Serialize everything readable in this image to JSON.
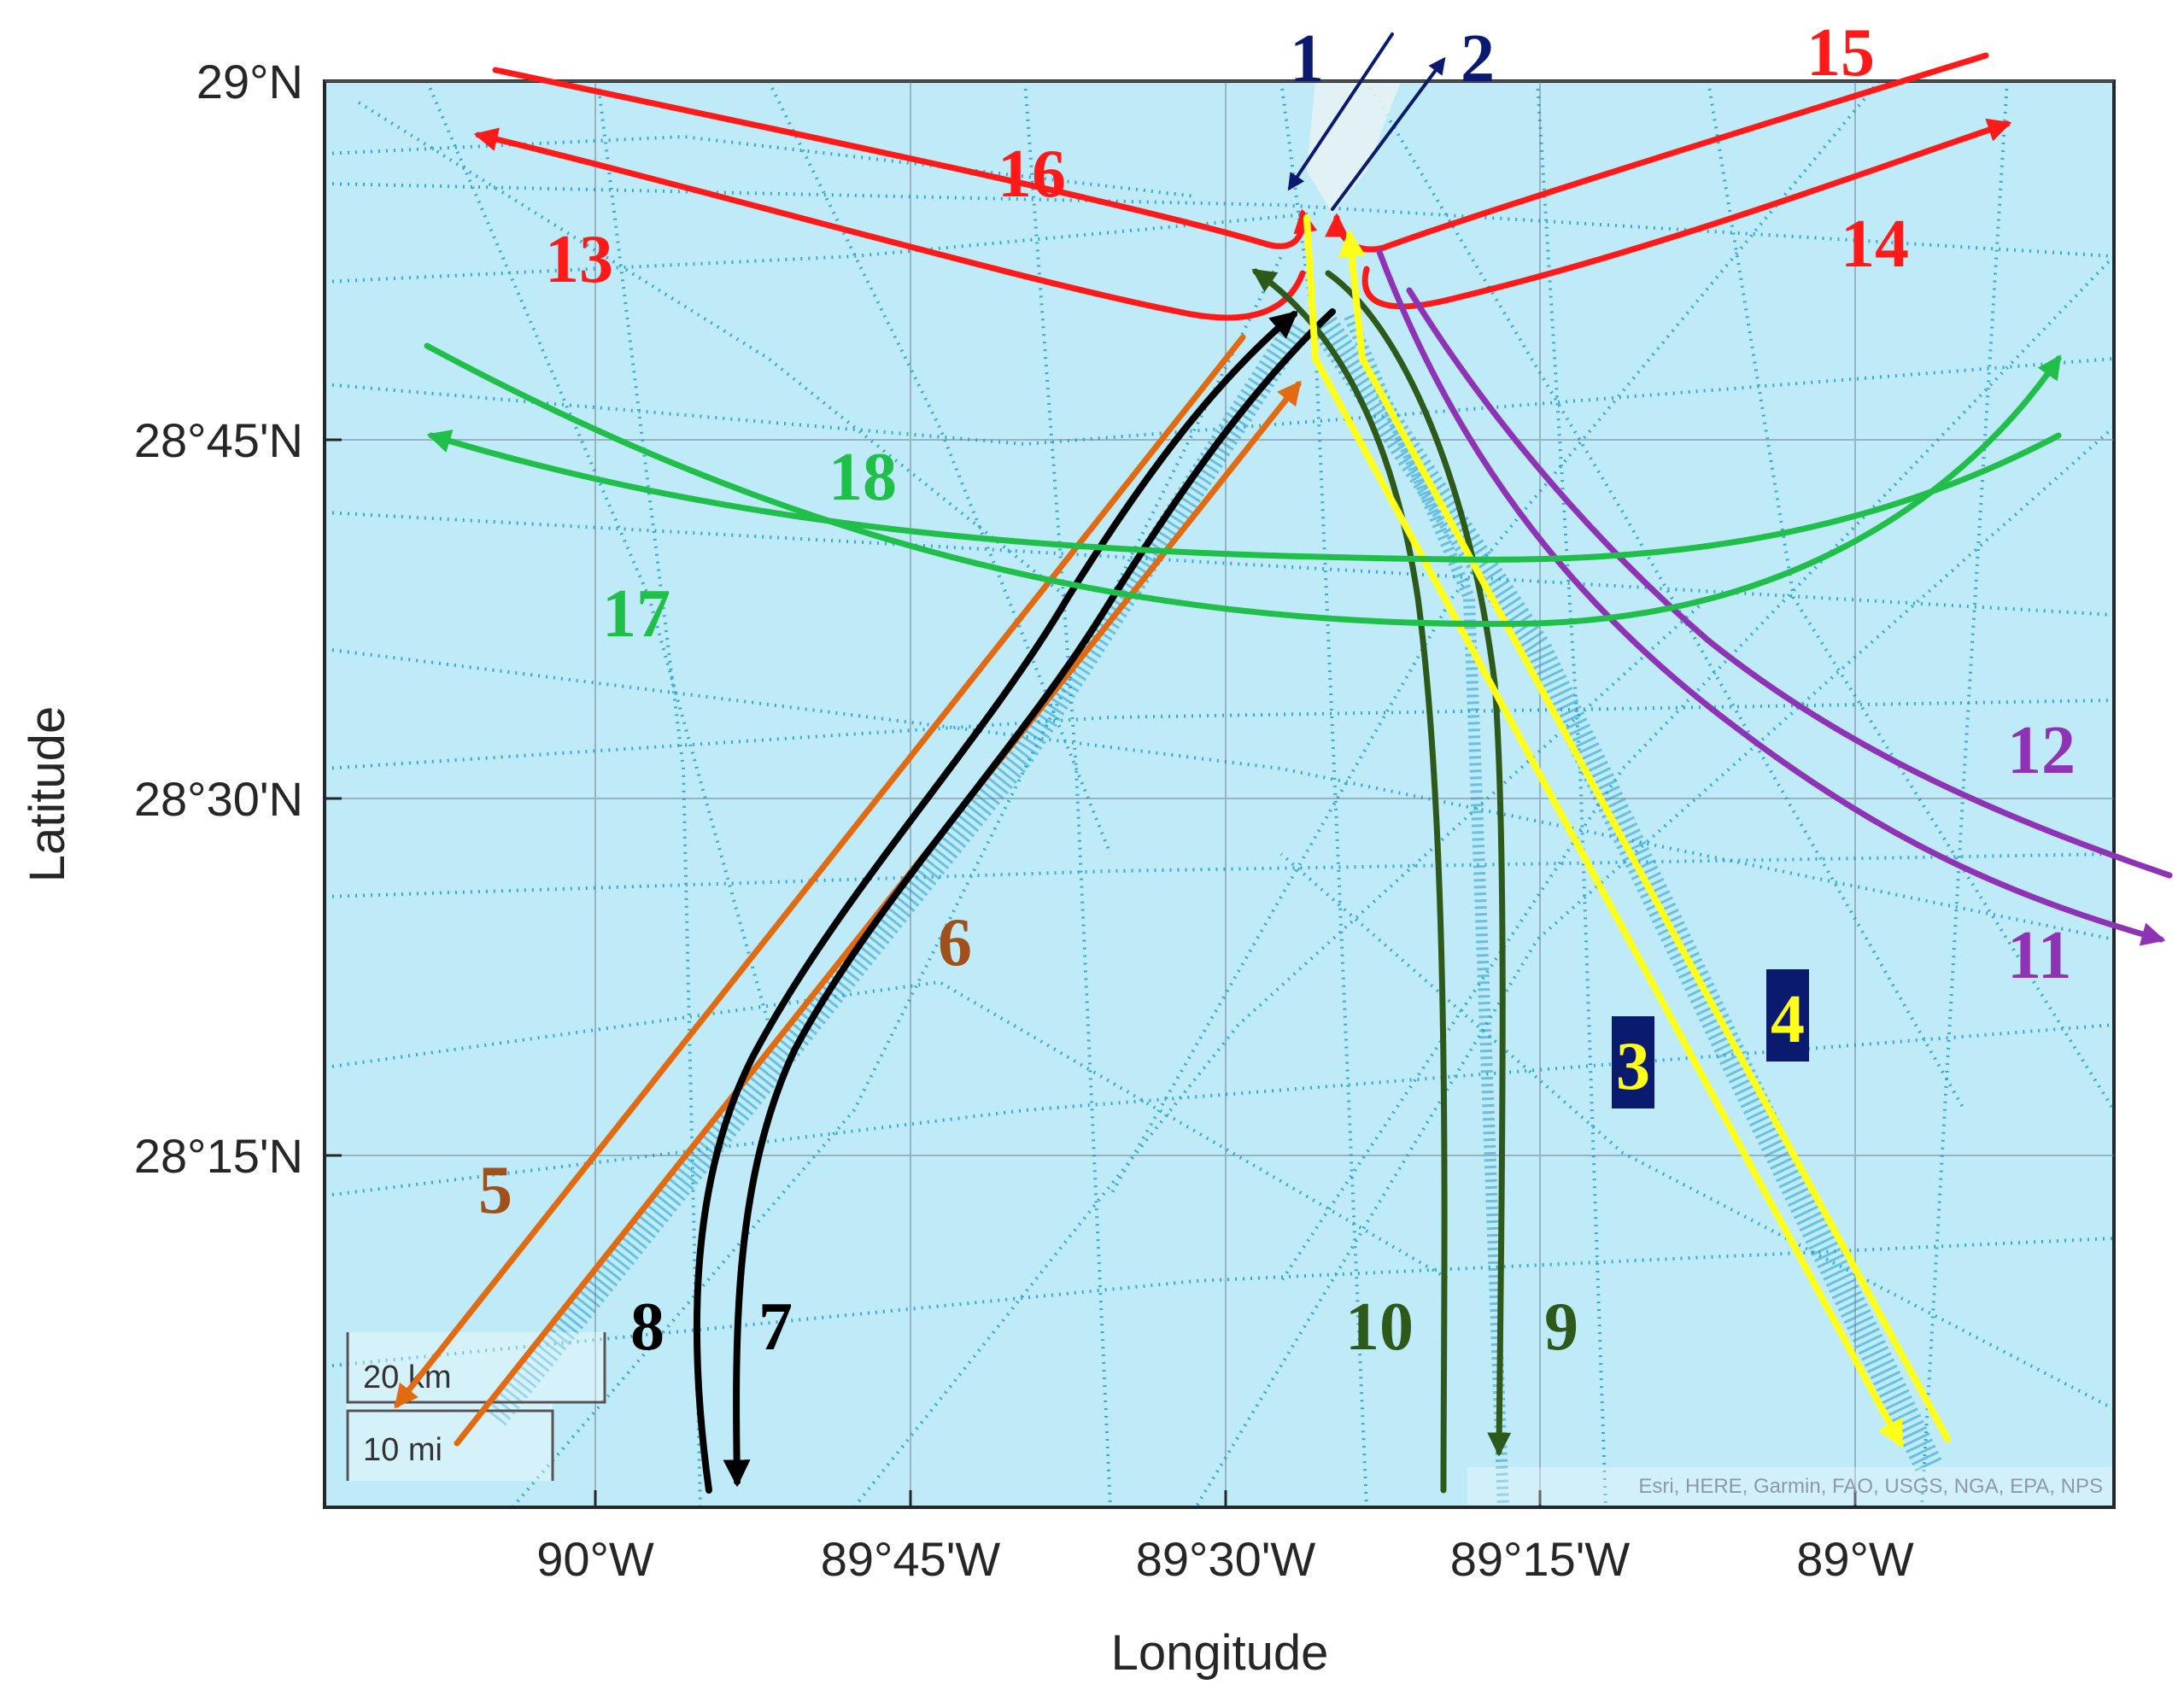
{
  "map": {
    "x_axis": {
      "label": "Longitude",
      "ticks": [
        "90°W",
        "89°45'W",
        "89°30'W",
        "89°15'W",
        "89°W"
      ]
    },
    "y_axis": {
      "label": "Latitude",
      "ticks": [
        "29°N",
        "28°45'N",
        "28°30'N",
        "28°15'N"
      ]
    },
    "scale_bar": {
      "km_label": "20 km",
      "mi_label": "10 mi"
    },
    "attribution": "Esri, HERE, Garmin, FAO, USGS, NGA, EPA, NPS",
    "colors": {
      "water": "#bfeaf8",
      "tracks": "#1d9fd4",
      "red": "#ff1a1a",
      "orange": "#e26a10",
      "black": "#000000",
      "dark_green": "#2d5a1a",
      "green": "#1fbf4a",
      "purple": "#8e33b5",
      "yellow": "#ffff1a",
      "navy": "#0a1a6e"
    },
    "route_labels": {
      "r1": "1",
      "r2": "2",
      "r3": "3",
      "r4": "4",
      "r5": "5",
      "r6": "6",
      "r7": "7",
      "r8": "8",
      "r9": "9",
      "r10": "10",
      "r11": "11",
      "r12": "12",
      "r13": "13",
      "r14": "14",
      "r15": "15",
      "r16": "16",
      "r17": "17",
      "r18": "18"
    }
  }
}
